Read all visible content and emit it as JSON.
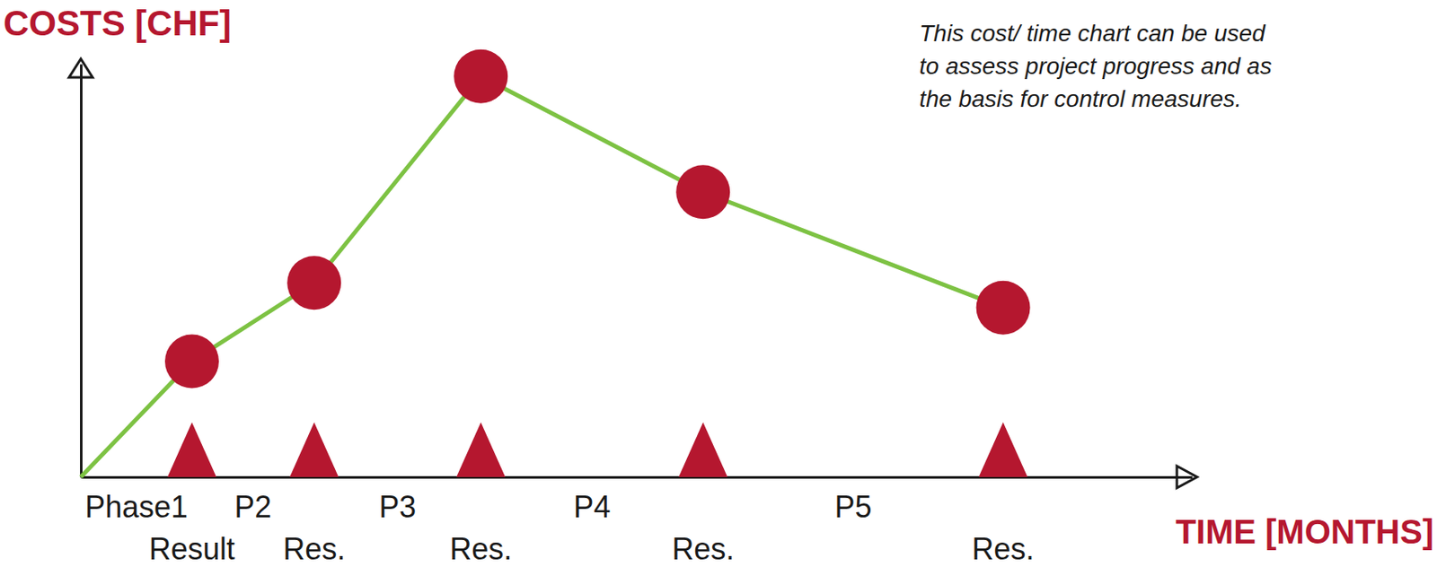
{
  "chart_data": {
    "type": "line",
    "y_label": "COSTS [CHF]",
    "x_label": "TIME [MONTHS]",
    "annotation": [
      "This cost/ time chart can be used",
      "to assess project progress and as",
      "the basis for control measures."
    ],
    "x": [
      0,
      10,
      21,
      36,
      56,
      83
    ],
    "values": [
      0,
      28,
      47,
      97,
      69,
      41
    ],
    "milestone_labels": [
      null,
      "Result",
      "Res.",
      "Res.",
      "Res.",
      "Res."
    ],
    "phase_labels": [
      "Phase1",
      "P2",
      "P3",
      "P4",
      "P5"
    ],
    "xlim": [
      0,
      100
    ],
    "ylim": [
      0,
      100
    ],
    "xticks": [],
    "yticks": [],
    "tick_labels": false,
    "grid": false,
    "color": "#7dc243",
    "marker": "circle",
    "line_style": "solid"
  }
}
